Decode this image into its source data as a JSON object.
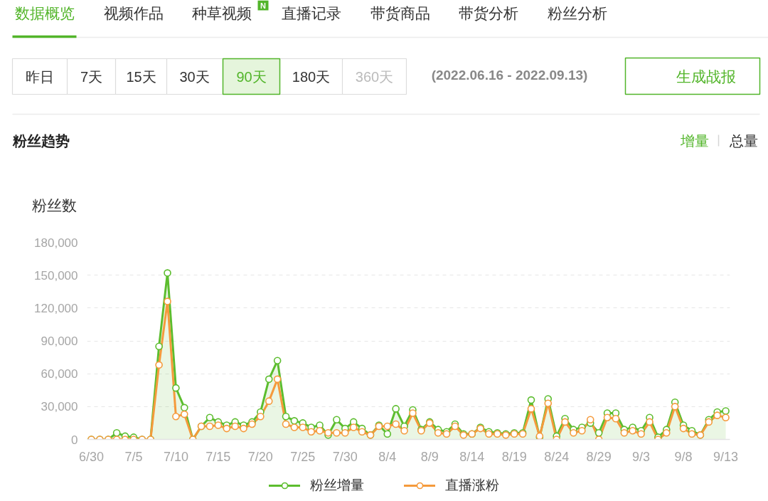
{
  "chart_data": {
    "type": "line",
    "title": "粉丝趋势",
    "ylabel": "粉丝数",
    "annotations": [
      "数据概览",
      "视频作品",
      "种草视频",
      "N",
      "直播记录",
      "带货商品",
      "带货分析",
      "粉丝分析",
      "昨日",
      "7天",
      "15天",
      "30天",
      "90天",
      "180天",
      "360天",
      "(2022.06.16 - 2022.09.13)",
      "生成战报",
      "增量",
      "总量"
    ],
    "x": [
      "2022-06-30",
      "2022-07-01",
      "2022-07-02",
      "2022-07-03",
      "2022-07-04",
      "2022-07-05",
      "2022-07-06",
      "2022-07-07",
      "2022-07-08",
      "2022-07-09",
      "2022-07-10",
      "2022-07-11",
      "2022-07-12",
      "2022-07-13",
      "2022-07-14",
      "2022-07-15",
      "2022-07-16",
      "2022-07-17",
      "2022-07-18",
      "2022-07-19",
      "2022-07-20",
      "2022-07-21",
      "2022-07-22",
      "2022-07-23",
      "2022-07-24",
      "2022-07-25",
      "2022-07-26",
      "2022-07-27",
      "2022-07-28",
      "2022-07-29",
      "2022-07-30",
      "2022-07-31",
      "2022-08-01",
      "2022-08-02",
      "2022-08-03",
      "2022-08-04",
      "2022-08-05",
      "2022-08-06",
      "2022-08-07",
      "2022-08-08",
      "2022-08-09",
      "2022-08-10",
      "2022-08-11",
      "2022-08-12",
      "2022-08-13",
      "2022-08-14",
      "2022-08-15",
      "2022-08-16",
      "2022-08-17",
      "2022-08-18",
      "2022-08-19",
      "2022-08-20",
      "2022-08-21",
      "2022-08-22",
      "2022-08-23",
      "2022-08-24",
      "2022-08-25",
      "2022-08-26",
      "2022-08-27",
      "2022-08-28",
      "2022-08-29",
      "2022-08-30",
      "2022-08-31",
      "2022-09-01",
      "2022-09-02",
      "2022-09-03",
      "2022-09-04",
      "2022-09-05",
      "2022-09-06",
      "2022-09-07",
      "2022-09-08",
      "2022-09-09",
      "2022-09-10",
      "2022-09-11",
      "2022-09-12",
      "2022-09-13"
    ],
    "series": [
      {
        "name": "粉丝增量",
        "type": "area",
        "color": "#5cbd2e",
        "values": [
          0,
          0,
          0,
          6000,
          3000,
          2000,
          0,
          0,
          85000,
          152000,
          47000,
          29000,
          0,
          12000,
          20000,
          16000,
          13000,
          16000,
          13000,
          16000,
          25000,
          55000,
          72000,
          21000,
          17000,
          15000,
          11000,
          13000,
          4000,
          18000,
          10000,
          16000,
          10000,
          4000,
          13000,
          5000,
          28000,
          12000,
          27000,
          9000,
          16000,
          9000,
          7000,
          14000,
          5000,
          5000,
          11000,
          7000,
          6000,
          5000,
          6000,
          6000,
          36000,
          2000,
          37000,
          3000,
          19000,
          9000,
          11000,
          15000,
          6000,
          24000,
          24000,
          9000,
          11000,
          8000,
          20000,
          2000,
          9000,
          34000,
          13000,
          8000,
          4000,
          18000,
          25000,
          26000
        ]
      },
      {
        "name": "直播涨粉",
        "color": "#f59a3c",
        "values": [
          0,
          0,
          0,
          0,
          0,
          0,
          0,
          0,
          68000,
          126000,
          21000,
          23000,
          0,
          12000,
          12000,
          13000,
          10000,
          12000,
          10000,
          14000,
          21000,
          35000,
          55000,
          14000,
          11000,
          11000,
          7000,
          8000,
          6000,
          6000,
          6000,
          11000,
          7000,
          4000,
          12000,
          12000,
          14000,
          8000,
          24000,
          8000,
          15000,
          6000,
          5000,
          12000,
          4000,
          5000,
          10000,
          5000,
          5000,
          4000,
          5000,
          5000,
          28000,
          3000,
          33000,
          0,
          16000,
          6000,
          8000,
          18000,
          0,
          20000,
          19000,
          6000,
          8000,
          5000,
          16000,
          0,
          6000,
          30000,
          10000,
          5000,
          4000,
          16000,
          22000,
          20000
        ]
      }
    ],
    "xlim": [
      "2022-06-29T12:00",
      "2022-09-13T12:00"
    ],
    "xticks": [
      {
        "value": "2022-06-30",
        "label": "6/30"
      },
      {
        "value": "2022-07-05",
        "label": "7/5"
      },
      {
        "value": "2022-07-10",
        "label": "7/10"
      },
      {
        "value": "2022-07-15",
        "label": "7/15"
      },
      {
        "value": "2022-07-20",
        "label": "7/20"
      },
      {
        "value": "2022-07-25",
        "label": "7/25"
      },
      {
        "value": "2022-07-30",
        "label": "7/30"
      },
      {
        "value": "2022-08-04",
        "label": "8/4"
      },
      {
        "value": "2022-08-09",
        "label": "8/9"
      },
      {
        "value": "2022-08-14",
        "label": "8/14"
      },
      {
        "value": "2022-08-19",
        "label": "8/19"
      },
      {
        "value": "2022-08-24",
        "label": "8/24"
      },
      {
        "value": "2022-08-29",
        "label": "8/29"
      },
      {
        "value": "2022-09-03",
        "label": "9/3"
      },
      {
        "value": "2022-09-08",
        "label": "9/8"
      },
      {
        "value": "2022-09-13",
        "label": "9/13"
      }
    ],
    "ylim": [
      0,
      180000
    ],
    "yticks": [
      0,
      {
        "value": 30000,
        "label": "30,000"
      },
      {
        "value": 60000,
        "label": "60,000"
      },
      {
        "value": 90000,
        "label": "90,000"
      },
      {
        "value": 120000,
        "label": "120,000"
      },
      {
        "value": 150000,
        "label": "150,000"
      },
      {
        "value": 180000,
        "label": "180,000"
      }
    ],
    "grid": "y",
    "legend": "bottom",
    "marker": "circle"
  }
}
